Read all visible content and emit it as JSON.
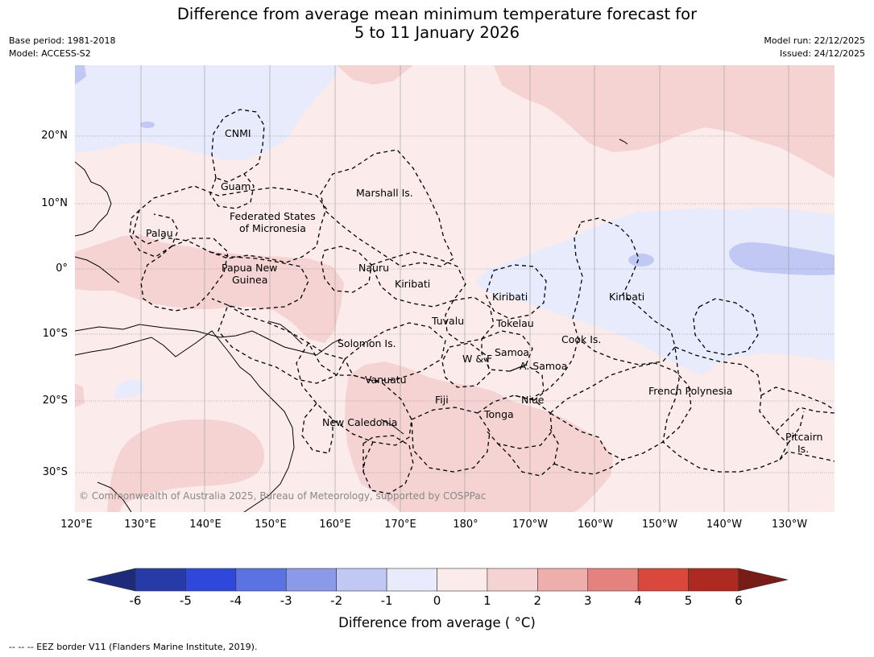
{
  "title_line1": "Difference from average mean minimum temperature forecast for",
  "title_line2": "5 to 11 January 2026",
  "meta_left": [
    "Base period: 1981-2018",
    "Model: ACCESS-S2"
  ],
  "meta_right": [
    "Model run: 22/12/2025",
    "Issued: 24/12/2025"
  ],
  "lat_labels": [
    "20°N",
    "10°N",
    "0°",
    "10°S",
    "20°S",
    "30°S"
  ],
  "lon_labels": [
    "120°E",
    "130°E",
    "140°E",
    "150°E",
    "160°E",
    "170°E",
    "180°",
    "170°W",
    "160°W",
    "150°W",
    "140°W",
    "130°W"
  ],
  "regions": [
    "CNMI",
    "Guam",
    "Marshall Is.",
    "Federated States",
    "of Micronesia",
    "Palau",
    "Papua New",
    "Guinea",
    "Nauru",
    "Kiribati",
    "Kiribati",
    "Kiribati",
    "Tuvalu",
    "Tokelau",
    "Solomon Is.",
    "Cook Is.",
    "W & F",
    "Samoa",
    "A. Samoa",
    "Vanuatu",
    "Fiji",
    "Niue",
    "French Polynesia",
    "Tonga",
    "New Caledonia",
    "Pitcairn",
    "Is."
  ],
  "copyright": "© Commonwealth of Australia 2025, Bureau of Meteorology, supported by COSPPac",
  "colorbar": {
    "ticks": [
      "-6",
      "-5",
      "-4",
      "-3",
      "-2",
      "-1",
      "0",
      "1",
      "2",
      "3",
      "4",
      "5",
      "6"
    ],
    "colors": [
      "#1e2a7a",
      "#263ba8",
      "#3047dc",
      "#5b72e2",
      "#8a99ea",
      "#c0c8f3",
      "#e8ebfb",
      "#fbebeb",
      "#f5d3d3",
      "#eeaeac",
      "#e6827e",
      "#da473d",
      "#ae2a21",
      "#781c17"
    ],
    "label": "Difference from average ( °C)"
  },
  "footnote": "--  --  -- EEZ border V11 (Flanders Marine Institute, 2019)."
}
